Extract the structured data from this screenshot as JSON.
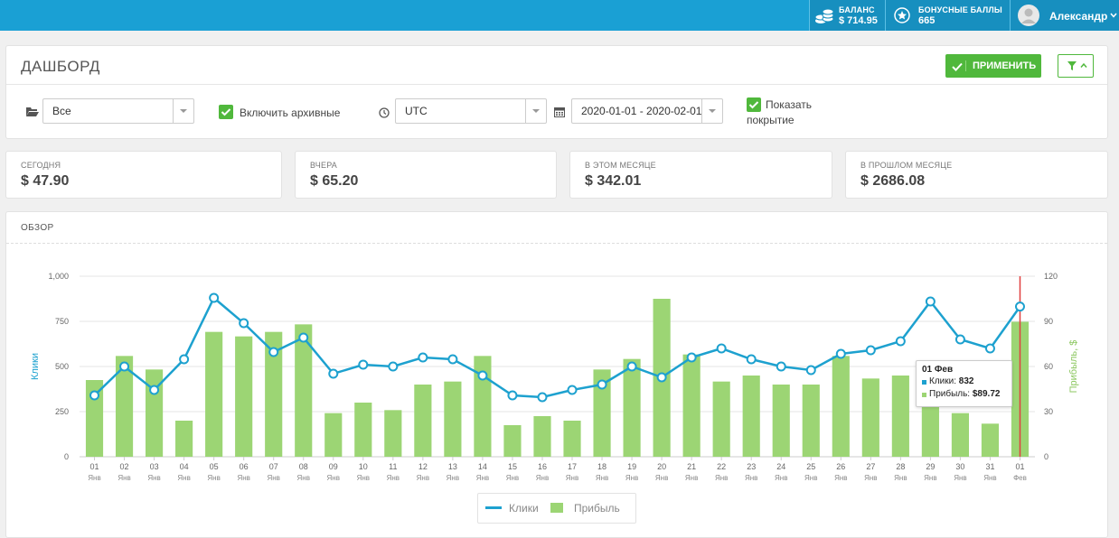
{
  "topbar": {
    "balance_label": "БАЛАНС",
    "balance_value": "$ 714.95",
    "bonus_label": "БОНУСНЫЕ БАЛЛЫ",
    "bonus_value": "665",
    "user_name": "Александр"
  },
  "header": {
    "title": "ДАШБОРД",
    "apply_label": "ПРИМЕНИТЬ"
  },
  "filters": {
    "folder_value": "Все",
    "archive_label": "Включить архивные",
    "timezone_value": "UTC",
    "date_range_value": "2020-01-01 - 2020-02-01",
    "coverage_label_1": "Показать",
    "coverage_label_2": "покрытие"
  },
  "stats": [
    {
      "label": "СЕГОДНЯ",
      "value": "$ 47.90"
    },
    {
      "label": "ВЧЕРА",
      "value": "$ 65.20"
    },
    {
      "label": "В ЭТОМ МЕСЯЦЕ",
      "value": "$ 342.01"
    },
    {
      "label": "В ПРОШЛОМ МЕСЯЦЕ",
      "value": "$ 2686.08"
    }
  ],
  "overview": {
    "title": "ОБЗОР"
  },
  "colors": {
    "accent": "#1aa0d4",
    "green": "#50b83c",
    "bar": "#9cd574",
    "line": "#1da1cf",
    "cursor": "#e04040"
  },
  "chart_data": {
    "type": "bar",
    "categories": [
      "01 Янв",
      "02 Янв",
      "03 Янв",
      "04 Янв",
      "05 Янв",
      "06 Янв",
      "07 Янв",
      "08 Янв",
      "09 Янв",
      "10 Янв",
      "11 Янв",
      "12 Янв",
      "13 Янв",
      "14 Янв",
      "15 Янв",
      "16 Янв",
      "17 Янв",
      "18 Янв",
      "19 Янв",
      "20 Янв",
      "21 Янв",
      "22 Янв",
      "23 Янв",
      "24 Янв",
      "25 Янв",
      "26 Янв",
      "27 Янв",
      "28 Янв",
      "29 Янв",
      "30 Янв",
      "31 Янв",
      "01 Фев"
    ],
    "x_day": [
      "01",
      "02",
      "03",
      "04",
      "05",
      "06",
      "07",
      "08",
      "09",
      "10",
      "11",
      "12",
      "13",
      "14",
      "15",
      "16",
      "17",
      "18",
      "19",
      "20",
      "21",
      "22",
      "23",
      "24",
      "25",
      "26",
      "27",
      "28",
      "29",
      "30",
      "31",
      "01"
    ],
    "x_month": [
      "Янв",
      "Янв",
      "Янв",
      "Янв",
      "Янв",
      "Янв",
      "Янв",
      "Янв",
      "Янв",
      "Янв",
      "Янв",
      "Янв",
      "Янв",
      "Янв",
      "Янв",
      "Янв",
      "Янв",
      "Янв",
      "Янв",
      "Янв",
      "Янв",
      "Янв",
      "Янв",
      "Янв",
      "Янв",
      "Янв",
      "Янв",
      "Янв",
      "Янв",
      "Янв",
      "Янв",
      "Фев"
    ],
    "series": [
      {
        "name": "Клики",
        "type": "line",
        "axis": "left",
        "values": [
          340,
          500,
          370,
          540,
          880,
          740,
          580,
          660,
          460,
          510,
          500,
          550,
          540,
          450,
          340,
          330,
          370,
          400,
          500,
          440,
          550,
          600,
          540,
          500,
          480,
          570,
          590,
          640,
          860,
          650,
          600,
          832
        ]
      },
      {
        "name": "Прибыль",
        "type": "bar",
        "axis": "right",
        "values": [
          51,
          67,
          58,
          24,
          83,
          80,
          83,
          88,
          29,
          36,
          31,
          48,
          50,
          67,
          21,
          27,
          24,
          58,
          65,
          105,
          68,
          50,
          54,
          48,
          48,
          67,
          52,
          54,
          55,
          29,
          22,
          89.72
        ]
      }
    ],
    "ylabel": "Клики",
    "y2label": "Прибыль, $",
    "ylim": [
      0,
      1000
    ],
    "y2lim": [
      0,
      120
    ],
    "yticks": [
      "0",
      "250",
      "500",
      "750",
      "1,000"
    ],
    "y2ticks": [
      "0",
      "30",
      "60",
      "90",
      "120"
    ],
    "grid": true,
    "legend": "bottom",
    "tooltip": {
      "title": "01 Фев",
      "clicks_label": "Клики:",
      "clicks_value": "832",
      "profit_label": "Прибыль:",
      "profit_value": "$89.72"
    }
  }
}
